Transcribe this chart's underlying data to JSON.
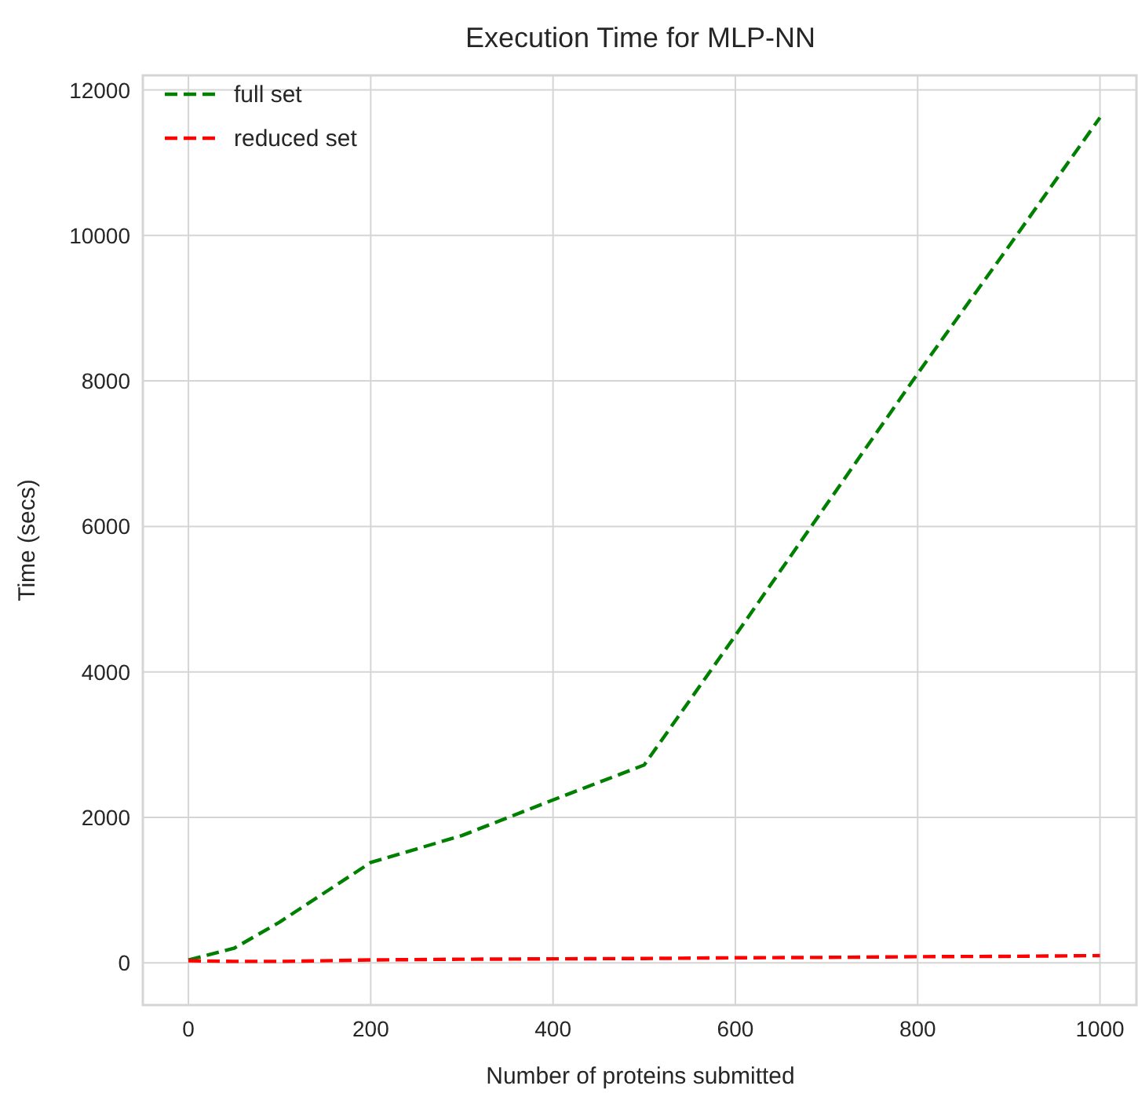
{
  "chart_data": {
    "type": "line",
    "title": "Execution Time for MLP-NN",
    "xlabel": "Number of proteins submitted",
    "ylabel": "Time (secs)",
    "x": [
      0,
      50,
      100,
      200,
      300,
      400,
      500,
      600,
      700,
      800,
      900,
      1000
    ],
    "series": [
      {
        "name": "full set",
        "color": "#008000",
        "values": [
          40,
          200,
          560,
          1380,
          1750,
          2240,
          2720,
          4500,
          6300,
          8100,
          9850,
          11620
        ]
      },
      {
        "name": "reduced set",
        "color": "#ff0000",
        "values": [
          30,
          20,
          20,
          40,
          50,
          55,
          60,
          70,
          75,
          85,
          90,
          100
        ]
      }
    ],
    "xlim": [
      -50,
      1040
    ],
    "ylim": [
      -580,
      12200
    ],
    "xticks": [
      0,
      200,
      400,
      600,
      800,
      1000
    ],
    "yticks": [
      0,
      2000,
      4000,
      6000,
      8000,
      10000,
      12000
    ],
    "grid": true,
    "legend": "top left",
    "line_style": "dashed",
    "marker": "none"
  }
}
